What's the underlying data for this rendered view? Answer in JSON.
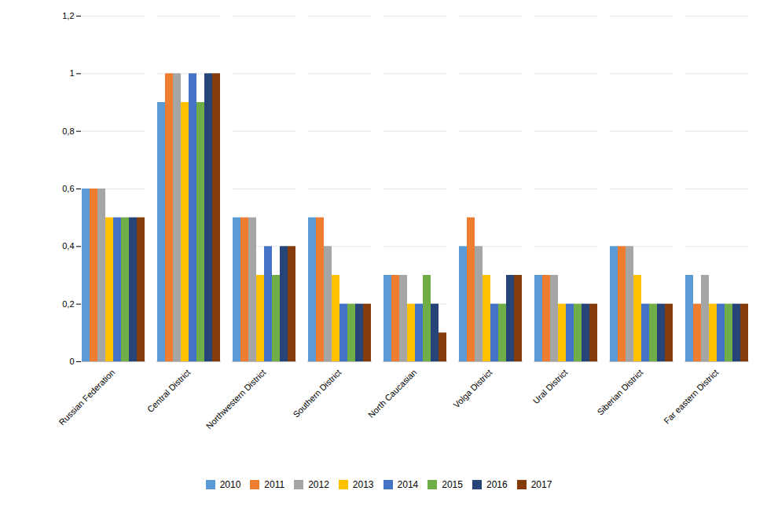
{
  "chart_data": {
    "type": "bar",
    "categories": [
      "Russian Federation",
      "Central District",
      "Northwestern District",
      "Southern District",
      "North Caucasian",
      "Volga District",
      "Ural District",
      "Siberian District",
      "Far eastern District"
    ],
    "series": [
      {
        "name": "2010",
        "color": "#5B9BD5",
        "values": [
          0.6,
          0.9,
          0.5,
          0.5,
          0.3,
          0.4,
          0.3,
          0.4,
          0.3
        ]
      },
      {
        "name": "2011",
        "color": "#ED7D31",
        "values": [
          0.6,
          1.0,
          0.5,
          0.5,
          0.3,
          0.5,
          0.3,
          0.4,
          0.2
        ]
      },
      {
        "name": "2012",
        "color": "#A5A5A5",
        "values": [
          0.6,
          1.0,
          0.5,
          0.4,
          0.3,
          0.4,
          0.3,
          0.4,
          0.3
        ]
      },
      {
        "name": "2013",
        "color": "#FFC000",
        "values": [
          0.5,
          0.9,
          0.3,
          0.3,
          0.2,
          0.3,
          0.2,
          0.3,
          0.2
        ]
      },
      {
        "name": "2014",
        "color": "#4472C4",
        "values": [
          0.5,
          1.0,
          0.4,
          0.2,
          0.2,
          0.2,
          0.2,
          0.2,
          0.2
        ]
      },
      {
        "name": "2015",
        "color": "#70AD47",
        "values": [
          0.5,
          0.9,
          0.3,
          0.2,
          0.3,
          0.2,
          0.2,
          0.2,
          0.2
        ]
      },
      {
        "name": "2016",
        "color": "#264478",
        "values": [
          0.5,
          1.0,
          0.4,
          0.2,
          0.2,
          0.3,
          0.2,
          0.2,
          0.2
        ]
      },
      {
        "name": "2017",
        "color": "#843C0C",
        "values": [
          0.5,
          1.0,
          0.4,
          0.2,
          0.1,
          0.3,
          0.2,
          0.2,
          0.2
        ]
      }
    ],
    "ylim": [
      0,
      1.2
    ],
    "yticks": [
      0,
      {
        "value": 0.2,
        "label": "0,2"
      },
      {
        "value": 0.4,
        "label": "0,4"
      },
      {
        "value": 0.6,
        "label": "0,6"
      },
      {
        "value": 0.8,
        "label": "0,8"
      },
      1,
      {
        "value": 1.2,
        "label": "1,2"
      }
    ],
    "grid": true,
    "legend": "bottom"
  }
}
